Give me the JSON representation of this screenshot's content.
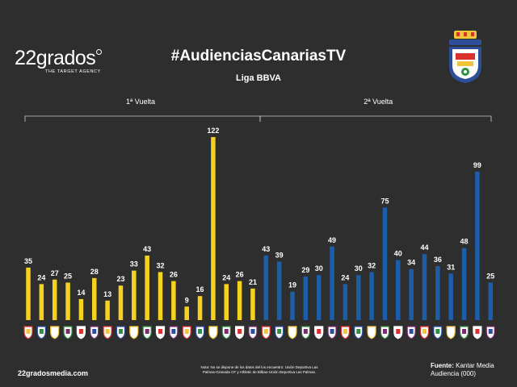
{
  "header": {
    "logo_text": "22grados",
    "logo_tagline": "THE TARGET AGENCY",
    "title": "#AudienciasCanariasTV",
    "subtitle": "Liga BBVA"
  },
  "footer": {
    "website": "22gradosmedia.com",
    "note": "Nota: No se dispone de los datos del los encuentro: Unión Deportiva Las Palmas-Granada CF y Athletic de Bilbao-Unión Deportiva Las Palmas.",
    "source_label": "Fuente:",
    "source_name": "Kantar Media",
    "source_unit": "Audiencia (000)"
  },
  "chart_data": {
    "type": "bar",
    "groups": [
      {
        "label": "1ª Vuelta",
        "color": "#f4d21f",
        "values": [
          35,
          24,
          27,
          25,
          14,
          28,
          13,
          23,
          33,
          43,
          32,
          26,
          9,
          16,
          122,
          24,
          26,
          21
        ]
      },
      {
        "label": "2ª Vuelta",
        "color": "#1d5ea8",
        "values": [
          43,
          39,
          19,
          29,
          30,
          49,
          24,
          30,
          32,
          75,
          40,
          34,
          44,
          36,
          31,
          48,
          99,
          25
        ]
      }
    ],
    "unit": "Audiencia (000)",
    "ylim": [
      0,
      122
    ],
    "grid": false,
    "crest_colors": [
      "#d8312e",
      "#2d4f9a",
      "#f0c53a",
      "#2f8f3e",
      "#ffffff",
      "#7a2a6e"
    ]
  }
}
